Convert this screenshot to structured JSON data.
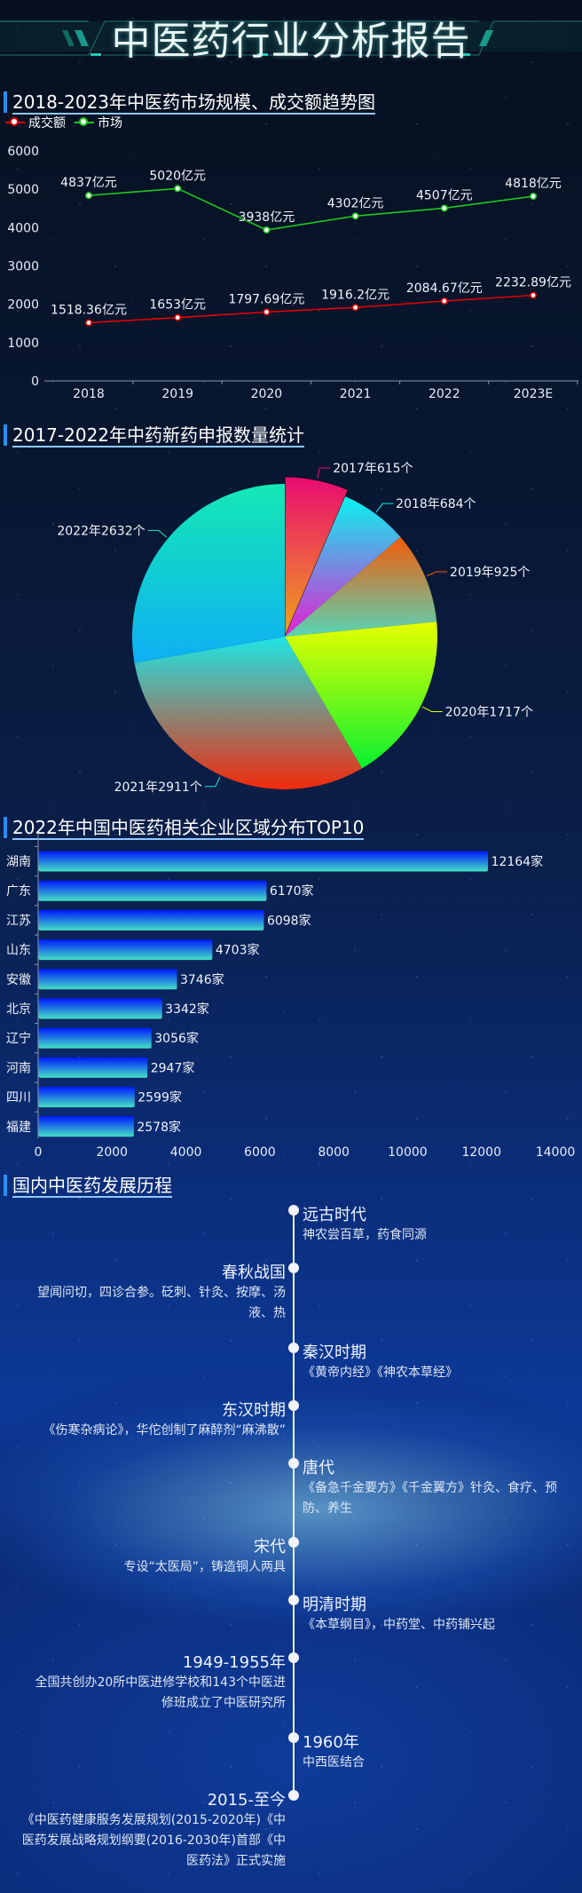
{
  "header": {
    "title": "中医药行业分析报告"
  },
  "colors": {
    "accent": "#2a8ef0",
    "market": "#1ec81e",
    "deal": "#e00000"
  },
  "chart_data": [
    {
      "type": "line",
      "title": "2018-2023年中医药市场规模、成交额趋势图",
      "categories": [
        "2018",
        "2019",
        "2020",
        "2021",
        "2022",
        "2023E"
      ],
      "ylim": [
        0,
        6000
      ],
      "yticks": [
        "0",
        "1000",
        "2000",
        "3000",
        "4000",
        "5000",
        "6000"
      ],
      "legend_position": "top-left",
      "series": [
        {
          "name": "成交额",
          "color": "#e00000",
          "values": [
            1518.36,
            1653,
            1797.69,
            1916.2,
            2084.67,
            2232.89
          ],
          "labels": [
            "1518.36亿元",
            "1653亿元",
            "1797.69亿元",
            "1916.2亿元",
            "2084.67亿元",
            "2232.89亿元"
          ]
        },
        {
          "name": "市场",
          "color": "#1ec81e",
          "values": [
            4837,
            5020,
            3938,
            4302,
            4507,
            4818
          ],
          "labels": [
            "4837亿元",
            "5020亿元",
            "3938亿元",
            "4302亿元",
            "4507亿元",
            "4818亿元"
          ]
        }
      ]
    },
    {
      "type": "pie",
      "title": "2017-2022年中药新药申报数量统计",
      "categories": [
        "2017",
        "2018",
        "2019",
        "2020",
        "2021",
        "2022"
      ],
      "values": [
        615,
        684,
        925,
        1717,
        2911,
        2632
      ],
      "labels": [
        "2017年615个",
        "2018年684个",
        "2019年925个",
        "2020年1717个",
        "2021年2911个",
        "2022年2632个"
      ],
      "gradients": [
        [
          "#ea0a72",
          "#f0a41a"
        ],
        [
          "#08f4f0",
          "#e81ed2"
        ],
        [
          "#f45a08",
          "#56d6b8"
        ],
        [
          "#e8ff00",
          "#08f030"
        ],
        [
          "#1ee6e6",
          "#f22a0c"
        ],
        [
          "#14e8b4",
          "#0eb0f4"
        ]
      ]
    },
    {
      "type": "bar",
      "orientation": "horizontal",
      "title": "2022年中国中医药相关企业区域分布TOP10",
      "categories": [
        "湖南",
        "广东",
        "江苏",
        "山东",
        "安徽",
        "北京",
        "辽宁",
        "河南",
        "四川",
        "福建"
      ],
      "values": [
        12164,
        6170,
        6098,
        4703,
        3746,
        3342,
        3056,
        2947,
        2599,
        2578
      ],
      "labels": [
        "12164家",
        "6170家",
        "6098家",
        "4703家",
        "3746家",
        "3342家",
        "3056家",
        "2947家",
        "2599家",
        "2578家"
      ],
      "xlim": [
        0,
        14000
      ],
      "xticks": [
        "0",
        "2000",
        "4000",
        "6000",
        "8000",
        "10000",
        "12000",
        "14000"
      ],
      "bar_gradient": [
        "#0018ff",
        "#44e0c4"
      ]
    }
  ],
  "timeline": {
    "title": "国内中医药发展历程",
    "items": [
      {
        "title": "远古时代",
        "desc": "神农尝百草，药食同源"
      },
      {
        "title": "春秋战国",
        "desc": "望闻问切，四诊合参。砭刺、针灸、按摩、汤液、热"
      },
      {
        "title": "秦汉时期",
        "desc": "《黄帝内经》《神农本草经》"
      },
      {
        "title": "东汉时期",
        "desc": "《伤寒杂病论》，华佗创制了麻醉剂“麻沸散”"
      },
      {
        "title": "唐代",
        "desc": "《备急千金要方》《千金翼方》针灸、食疗、预防、养生"
      },
      {
        "title": "宋代",
        "desc": "专设“太医局”，铸造铜人两具"
      },
      {
        "title": "明清时期",
        "desc": "《本草纲目》，中药堂、中药铺兴起"
      },
      {
        "title": "1949-1955年",
        "desc": "全国共创办20所中医进修学校和143个中医进修班成立了中医研究所"
      },
      {
        "title": "1960年",
        "desc": "中西医结合"
      },
      {
        "title": "2015-至今",
        "desc": "《中医药健康服务发展规划(2015-2020年)《中医药发展战略规划纲要(2016-2030年)首部《中医药法》正式实施"
      }
    ]
  }
}
